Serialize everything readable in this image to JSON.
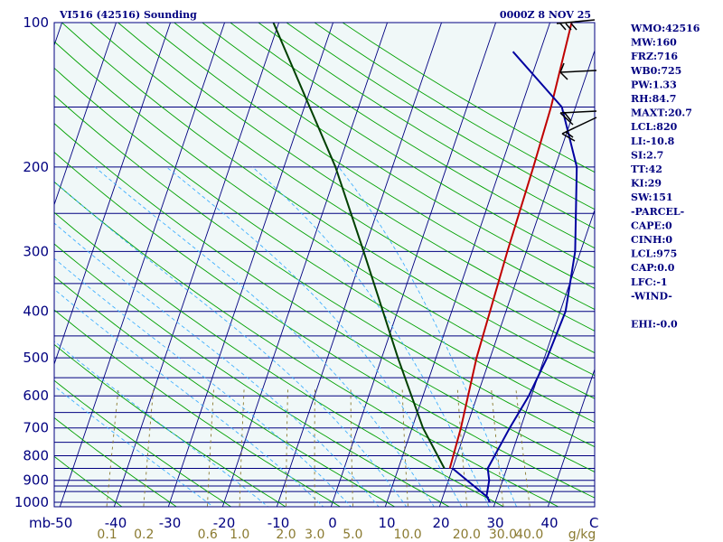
{
  "header": {
    "station_title": "VI516 (42516) Sounding",
    "datetime": "0000Z  8 NOV 25"
  },
  "side_panel": {
    "lines": [
      "WMO:42516",
      "MW:160",
      "FRZ:716",
      "WB0:725",
      "PW:1.33",
      "RH:84.7",
      "MAXT:20.7",
      "LCL:820",
      "LI:-10.8",
      "SI:2.7",
      "TT:42",
      "KI:29",
      "SW:151",
      "-PARCEL-",
      "CAPE:0",
      "CINH:0",
      "LCL:975",
      "CAP:0.0",
      "LFC:-1",
      "-WIND-",
      "",
      "EHI:-0.0"
    ]
  },
  "colors": {
    "isobar": "#000080",
    "isotherm": "#000080",
    "dry_adiabat": "#00a000",
    "moist_adiabat": "#40b0ff",
    "mixing_ratio": "#8a7a30",
    "temperature": "#c00000",
    "dewpoint": "#0000a0",
    "parcel": "#004000",
    "background": "#f0f8f8"
  },
  "chart_data": {
    "type": "skew-t",
    "x_unit_label": "C",
    "mixing_unit_label": "g/kg",
    "y_unit_label": "mb",
    "temperature_ticks": [
      -50,
      -40,
      -30,
      -20,
      -10,
      0,
      10,
      20,
      30,
      40
    ],
    "pressure_labels": [
      100,
      200,
      300,
      400,
      500,
      600,
      700,
      800,
      900,
      1000
    ],
    "isobars": [
      100,
      150,
      200,
      250,
      300,
      350,
      400,
      450,
      500,
      550,
      600,
      650,
      700,
      750,
      800,
      850,
      900,
      925,
      950,
      1000
    ],
    "mixing_ratio_labels": [
      "0.1",
      "0.2",
      "0.6",
      "1.0",
      "2.0",
      "3.0",
      "5.0",
      "10.0",
      "20.0",
      "30.0",
      "40.0"
    ],
    "temperature_profile": [
      {
        "p": 850,
        "t": 19.5
      },
      {
        "p": 700,
        "t": 19.0
      },
      {
        "p": 500,
        "t": 17.5
      },
      {
        "p": 300,
        "t": 16.5
      },
      {
        "p": 200,
        "t": 16.0
      },
      {
        "p": 150,
        "t": 15.5
      },
      {
        "p": 100,
        "t": 14.0
      }
    ],
    "dewpoint_profile": [
      {
        "p": 1000,
        "t": 29.0
      },
      {
        "p": 970,
        "t": 28.0
      },
      {
        "p": 900,
        "t": 27.5
      },
      {
        "p": 850,
        "t": 26.5
      },
      {
        "p": 700,
        "t": 28.0
      },
      {
        "p": 600,
        "t": 29.5
      },
      {
        "p": 500,
        "t": 30.5
      },
      {
        "p": 400,
        "t": 31.0
      },
      {
        "p": 300,
        "t": 29.0
      },
      {
        "p": 200,
        "t": 24.0
      },
      {
        "p": 150,
        "t": 17.5
      },
      {
        "p": 115,
        "t": 5.0
      }
    ],
    "parcel_path": [
      {
        "p": 850,
        "t": 18.5
      },
      {
        "p": 700,
        "t": 12.0
      },
      {
        "p": 500,
        "t": 3.0
      },
      {
        "p": 300,
        "t": -10.0
      },
      {
        "p": 200,
        "t": -20.5
      },
      {
        "p": 100,
        "t": -41.0
      }
    ],
    "surface_segment": [
      {
        "p": 850,
        "t": 20.0
      },
      {
        "p": 980,
        "t": 28.5
      }
    ]
  }
}
